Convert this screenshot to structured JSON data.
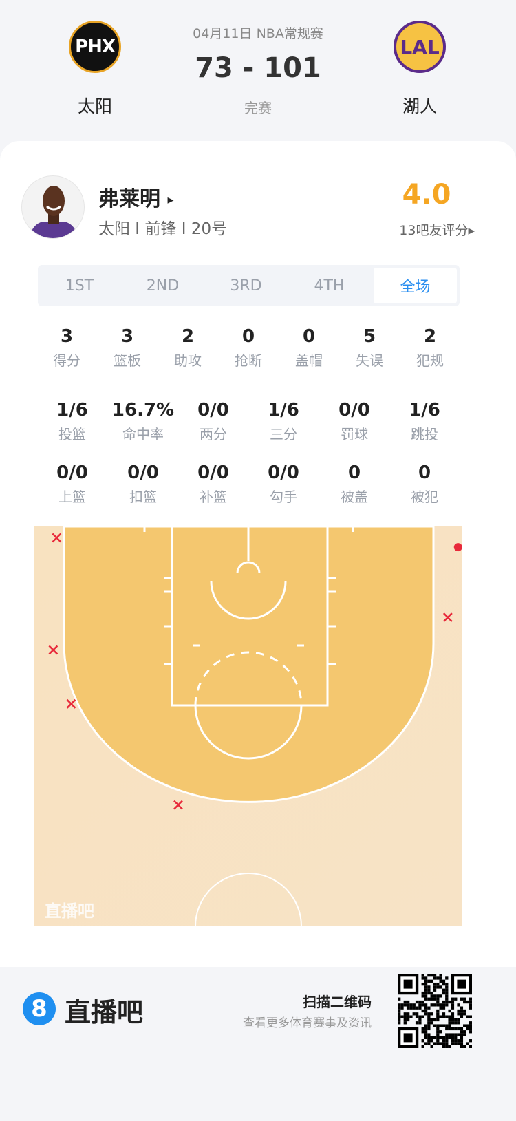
{
  "header": {
    "date_league": "04月11日 NBA常规赛",
    "score": "73 - 101",
    "status": "完赛",
    "home": {
      "abbr": "PHX",
      "name": "太阳",
      "color": "#e8a426"
    },
    "away": {
      "abbr": "LAL",
      "name": "湖人",
      "color": "#5b2b8a"
    }
  },
  "player": {
    "name": "弗莱明",
    "arrow": "▸",
    "info": "太阳 I 前锋 I 20号",
    "rating": "4.0",
    "rating_label": "13吧友评分▸",
    "rating_color": "#f5a623"
  },
  "tabs": [
    {
      "label": "1ST"
    },
    {
      "label": "2ND"
    },
    {
      "label": "3RD"
    },
    {
      "label": "4TH"
    },
    {
      "label": "全场",
      "active": true
    }
  ],
  "stats_row1": [
    {
      "v": "3",
      "l": "得分"
    },
    {
      "v": "3",
      "l": "篮板"
    },
    {
      "v": "2",
      "l": "助攻"
    },
    {
      "v": "0",
      "l": "抢断"
    },
    {
      "v": "0",
      "l": "盖帽"
    },
    {
      "v": "5",
      "l": "失误"
    },
    {
      "v": "2",
      "l": "犯规"
    }
  ],
  "stats_row2": [
    {
      "v": "1/6",
      "l": "投篮"
    },
    {
      "v": "16.7%",
      "l": "命中率"
    },
    {
      "v": "0/0",
      "l": "两分"
    },
    {
      "v": "1/6",
      "l": "三分"
    },
    {
      "v": "0/0",
      "l": "罚球"
    },
    {
      "v": "1/6",
      "l": "跳投"
    }
  ],
  "stats_row3": [
    {
      "v": "0/0",
      "l": "上篮"
    },
    {
      "v": "0/0",
      "l": "扣篮"
    },
    {
      "v": "0/0",
      "l": "补篮"
    },
    {
      "v": "0/0",
      "l": "勾手"
    },
    {
      "v": "0",
      "l": "被盖"
    },
    {
      "v": "0",
      "l": "被犯"
    }
  ],
  "shot_chart": {
    "watermark": "直播吧",
    "made_color": "#e8293a",
    "miss_color": "#e8293a",
    "shots_ft_from_basket": [
      {
        "x": -22.4,
        "y": -3.9,
        "made": false
      },
      {
        "x": -22.8,
        "y": 9.2,
        "made": false
      },
      {
        "x": -20.7,
        "y": 15.5,
        "made": false
      },
      {
        "x": -8.2,
        "y": 27.3,
        "made": false
      },
      {
        "x": 23.3,
        "y": 5.4,
        "made": false
      },
      {
        "x": 24.5,
        "y": -2.8,
        "made": true
      }
    ]
  },
  "footer": {
    "brand": "直播吧",
    "brand_icon": "8",
    "brand_color": "#1f8ff0",
    "qr_title": "扫描二维码",
    "qr_sub": "查看更多体育赛事及资讯"
  }
}
